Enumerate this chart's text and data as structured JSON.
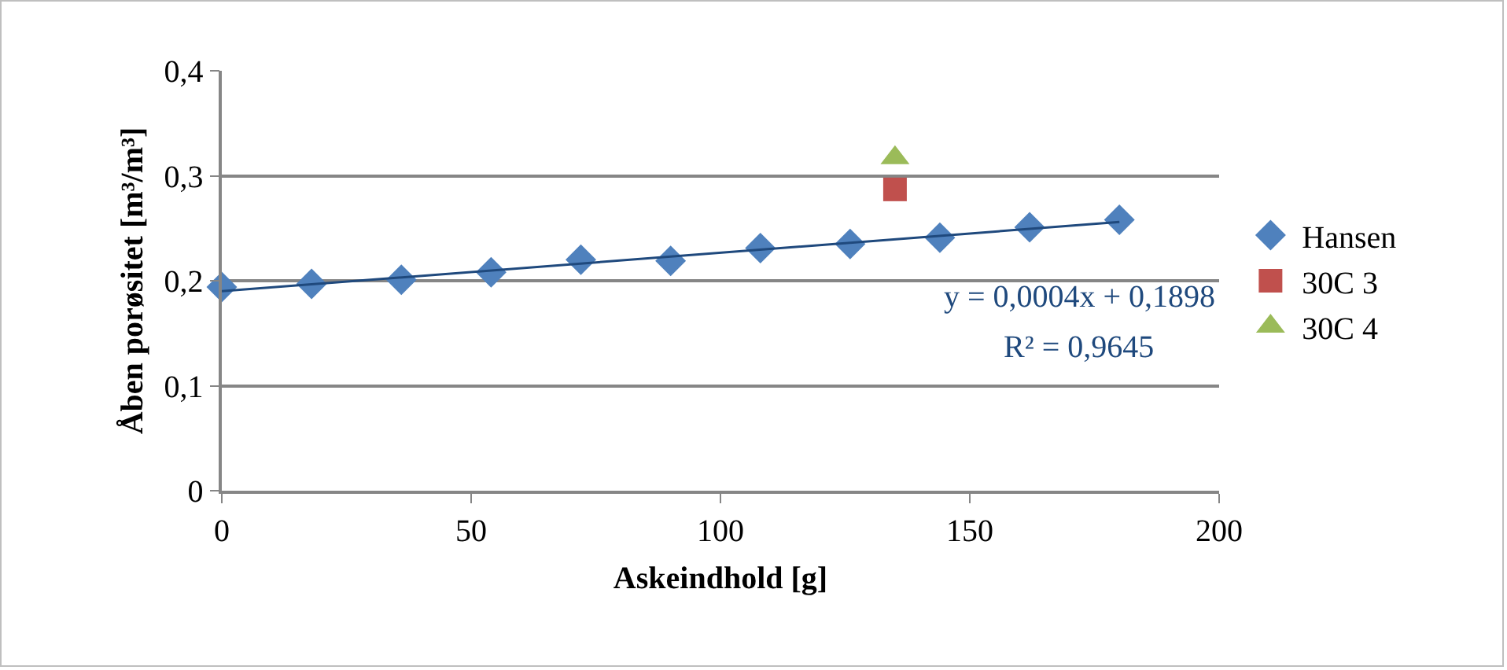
{
  "chart_data": {
    "type": "scatter",
    "xlabel": "Askeindhold [g]",
    "ylabel": "Åben porøsitet [m³/m³]",
    "xlim": [
      0,
      200
    ],
    "xticks": [
      0,
      50,
      100,
      150,
      200
    ],
    "ylim": [
      0,
      0.4
    ],
    "yticks": [
      {
        "value": 0,
        "label": "0"
      },
      {
        "value": 0.1,
        "label": "0,1"
      },
      {
        "value": 0.2,
        "label": "0,2"
      },
      {
        "value": 0.3,
        "label": "0,3"
      },
      {
        "value": 0.4,
        "label": "0,4"
      }
    ],
    "grid": "y",
    "legend": "right",
    "series": [
      {
        "name": "Hansen",
        "color": "#4f81bd",
        "marker": "diamond",
        "x": [
          0,
          18,
          36,
          54,
          72,
          90,
          108,
          126,
          144,
          162,
          180
        ],
        "values": [
          0.194,
          0.197,
          0.201,
          0.208,
          0.22,
          0.219,
          0.231,
          0.235,
          0.241,
          0.251,
          0.258
        ]
      },
      {
        "name": "30C 3",
        "color": "#c0504d",
        "marker": "square",
        "x": [
          135
        ],
        "values": [
          0.287
        ]
      },
      {
        "name": "30C 4",
        "color": "#9bbb59",
        "marker": "triangle",
        "x": [
          135
        ],
        "values": [
          0.317
        ]
      },
      {
        "type": "line",
        "color": "#1f497d",
        "x": [
          0,
          180
        ],
        "values": [
          0.19,
          0.256
        ]
      }
    ],
    "annotations": [
      "y = 0,0004x + 0,1898",
      "R² = 0,9645"
    ]
  }
}
